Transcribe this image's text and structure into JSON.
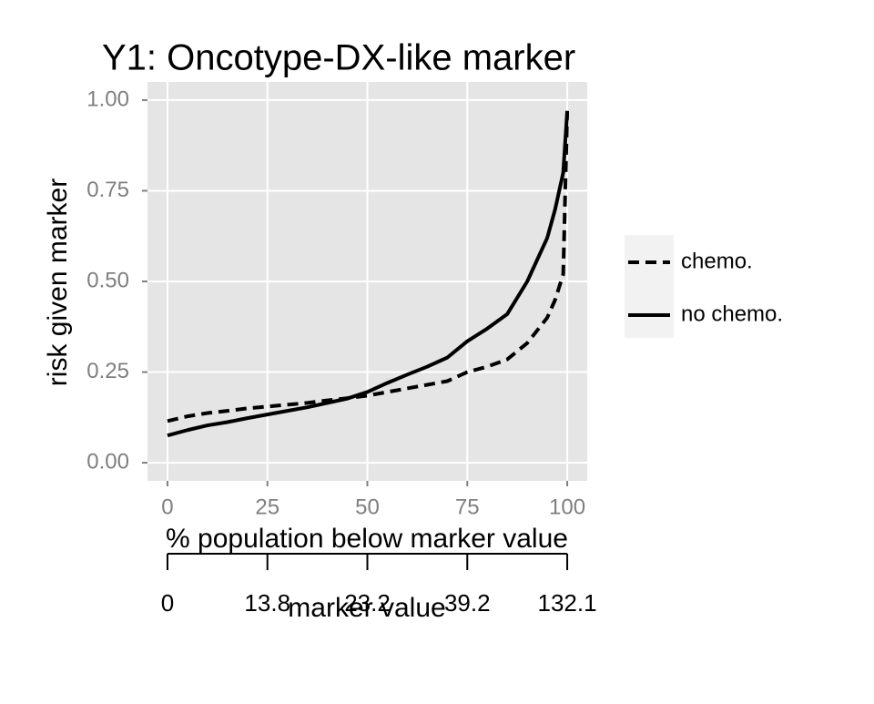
{
  "chart_data": {
    "type": "line",
    "title": "Y1: Oncotype-DX-like marker",
    "x_label": "% population below marker value",
    "y_label": "risk given marker",
    "x": [
      0,
      5,
      10,
      15,
      20,
      25,
      30,
      35,
      40,
      45,
      50,
      55,
      60,
      65,
      70,
      75,
      80,
      85,
      90,
      95,
      97,
      99,
      100
    ],
    "series": [
      {
        "name": "chemo.",
        "color": "#000000",
        "linestyle": "dashed",
        "values": [
          0.115,
          0.128,
          0.137,
          0.143,
          0.15,
          0.155,
          0.16,
          0.165,
          0.172,
          0.178,
          0.185,
          0.195,
          0.205,
          0.215,
          0.225,
          0.25,
          0.265,
          0.285,
          0.33,
          0.4,
          0.45,
          0.52,
          0.97
        ]
      },
      {
        "name": "no chemo.",
        "color": "#000000",
        "linestyle": "solid",
        "values": [
          0.075,
          0.09,
          0.103,
          0.112,
          0.123,
          0.133,
          0.143,
          0.153,
          0.165,
          0.177,
          0.195,
          0.22,
          0.243,
          0.265,
          0.29,
          0.335,
          0.37,
          0.41,
          0.5,
          0.62,
          0.7,
          0.8,
          0.97
        ]
      }
    ],
    "xlim": [
      -5,
      105
    ],
    "ylim": [
      -0.05,
      1.05
    ],
    "xticks": [
      0,
      25,
      50,
      75,
      100
    ],
    "yticks": [
      {
        "value": 0,
        "label": "0.00"
      },
      {
        "value": 0.25,
        "label": "0.25"
      },
      {
        "value": 0.5,
        "label": "0.50"
      },
      {
        "value": 0.75,
        "label": "0.75"
      },
      {
        "value": 1,
        "label": "1.00"
      }
    ],
    "grid": true,
    "legend": "right",
    "secondary_x_axis": {
      "label": "marker value",
      "ticks": [
        0,
        {
          "value": 25,
          "label": "13.8"
        },
        {
          "value": 50,
          "label": "23.2"
        },
        {
          "value": 75,
          "label": "39.2"
        },
        {
          "value": 100,
          "label": "132.1"
        }
      ]
    }
  }
}
